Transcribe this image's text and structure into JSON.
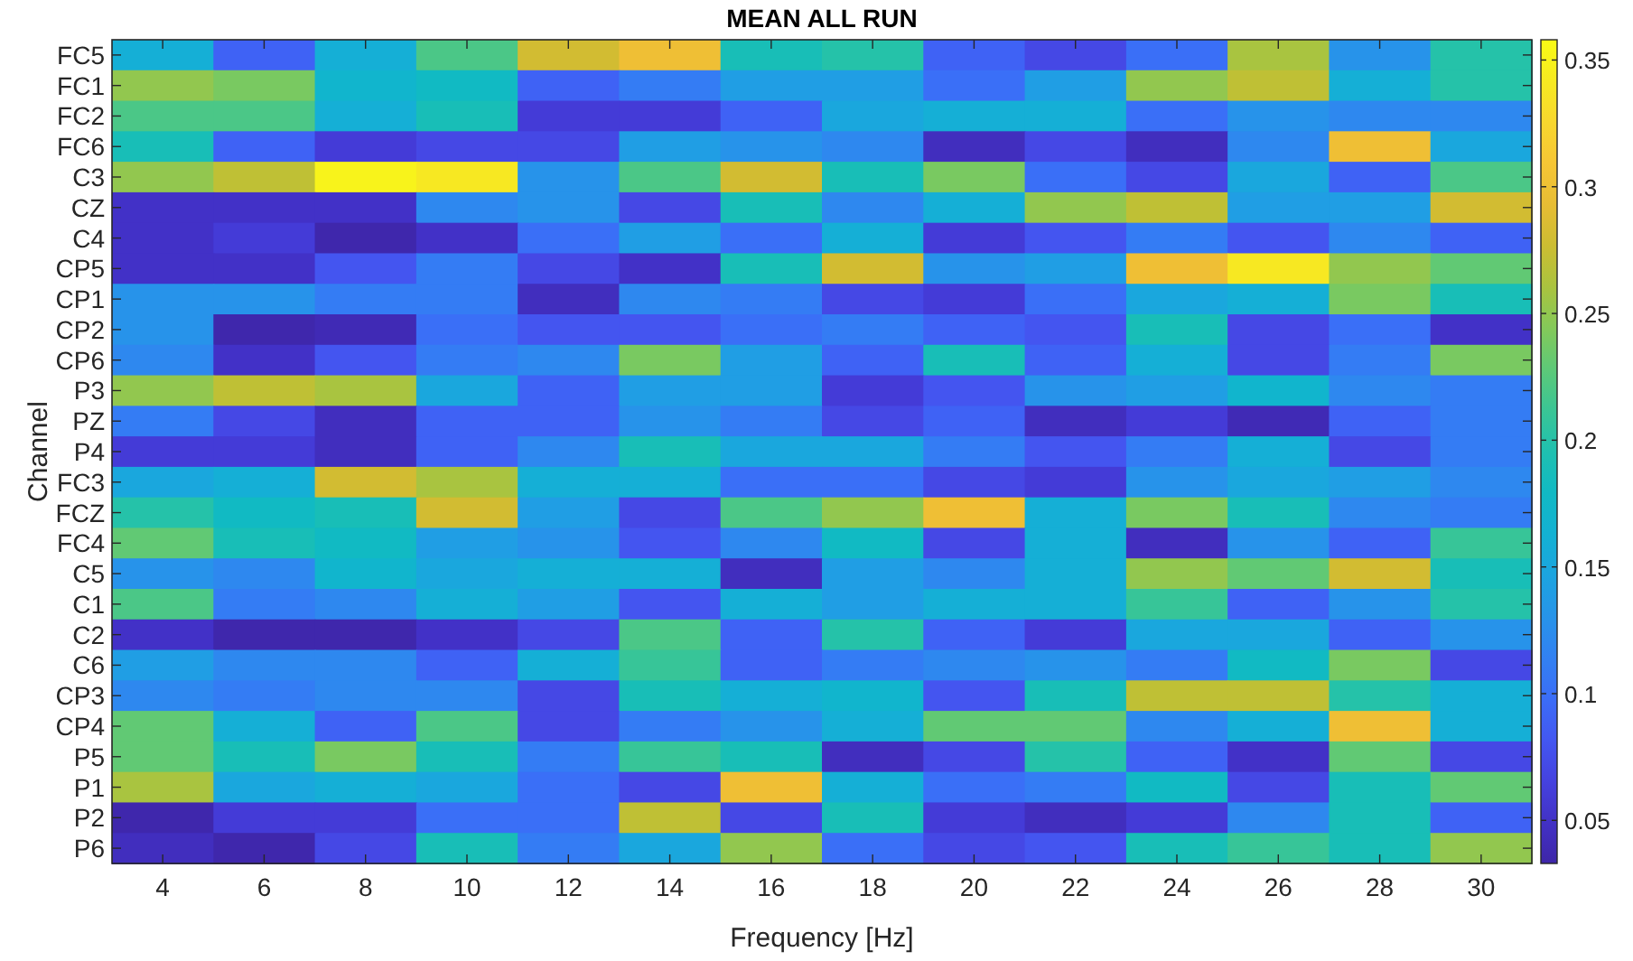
{
  "chart_data": {
    "type": "heatmap",
    "title": "MEAN ALL RUN",
    "xlabel": "Frequency [Hz]",
    "ylabel": "Channel",
    "categories": [
      "4",
      "6",
      "8",
      "10",
      "12",
      "14",
      "16",
      "18",
      "20",
      "22",
      "24",
      "26",
      "28",
      "30"
    ],
    "y_categories": [
      "FC5",
      "FC1",
      "FC2",
      "FC6",
      "C3",
      "CZ",
      "C4",
      "CP5",
      "CP1",
      "CP2",
      "CP6",
      "P3",
      "PZ",
      "P4",
      "FC3",
      "FCZ",
      "FC4",
      "C5",
      "C1",
      "C2",
      "C6",
      "CP3",
      "CP4",
      "P5",
      "P1",
      "P2",
      "P6"
    ],
    "cells": [
      [
        0.16,
        0.09,
        0.16,
        0.22,
        0.28,
        0.3,
        0.19,
        0.2,
        0.09,
        0.07,
        0.1,
        0.26,
        0.13,
        0.2
      ],
      [
        0.25,
        0.24,
        0.17,
        0.18,
        0.09,
        0.11,
        0.14,
        0.14,
        0.1,
        0.14,
        0.25,
        0.27,
        0.16,
        0.2
      ],
      [
        0.22,
        0.22,
        0.16,
        0.19,
        0.06,
        0.06,
        0.09,
        0.15,
        0.16,
        0.16,
        0.1,
        0.13,
        0.12,
        0.12
      ],
      [
        0.19,
        0.09,
        0.06,
        0.07,
        0.07,
        0.14,
        0.13,
        0.12,
        0.045,
        0.07,
        0.045,
        0.12,
        0.3,
        0.15
      ],
      [
        0.25,
        0.27,
        0.35,
        0.34,
        0.13,
        0.22,
        0.28,
        0.19,
        0.24,
        0.1,
        0.07,
        0.15,
        0.09,
        0.22
      ],
      [
        0.05,
        0.05,
        0.05,
        0.12,
        0.13,
        0.07,
        0.19,
        0.12,
        0.16,
        0.25,
        0.27,
        0.14,
        0.14,
        0.28
      ],
      [
        0.05,
        0.06,
        0.035,
        0.05,
        0.1,
        0.14,
        0.1,
        0.16,
        0.06,
        0.08,
        0.11,
        0.08,
        0.12,
        0.09
      ],
      [
        0.05,
        0.05,
        0.08,
        0.11,
        0.07,
        0.05,
        0.19,
        0.28,
        0.13,
        0.14,
        0.3,
        0.34,
        0.25,
        0.23
      ],
      [
        0.13,
        0.13,
        0.11,
        0.11,
        0.045,
        0.12,
        0.11,
        0.07,
        0.06,
        0.1,
        0.15,
        0.16,
        0.24,
        0.19
      ],
      [
        0.13,
        0.035,
        0.04,
        0.1,
        0.08,
        0.08,
        0.1,
        0.11,
        0.09,
        0.08,
        0.19,
        0.07,
        0.1,
        0.05
      ],
      [
        0.12,
        0.05,
        0.08,
        0.11,
        0.12,
        0.24,
        0.14,
        0.09,
        0.19,
        0.09,
        0.16,
        0.07,
        0.11,
        0.24
      ],
      [
        0.25,
        0.27,
        0.26,
        0.15,
        0.09,
        0.14,
        0.14,
        0.06,
        0.08,
        0.13,
        0.14,
        0.17,
        0.12,
        0.11
      ],
      [
        0.11,
        0.07,
        0.045,
        0.09,
        0.09,
        0.13,
        0.11,
        0.07,
        0.09,
        0.045,
        0.06,
        0.04,
        0.09,
        0.11
      ],
      [
        0.06,
        0.06,
        0.045,
        0.09,
        0.12,
        0.19,
        0.15,
        0.15,
        0.11,
        0.08,
        0.11,
        0.16,
        0.07,
        0.11
      ],
      [
        0.15,
        0.16,
        0.28,
        0.26,
        0.16,
        0.16,
        0.1,
        0.1,
        0.07,
        0.06,
        0.13,
        0.15,
        0.14,
        0.12
      ],
      [
        0.2,
        0.18,
        0.19,
        0.28,
        0.14,
        0.07,
        0.22,
        0.25,
        0.3,
        0.16,
        0.24,
        0.19,
        0.12,
        0.11
      ],
      [
        0.23,
        0.19,
        0.18,
        0.14,
        0.13,
        0.08,
        0.12,
        0.18,
        0.07,
        0.16,
        0.045,
        0.13,
        0.09,
        0.21
      ],
      [
        0.13,
        0.12,
        0.17,
        0.15,
        0.16,
        0.16,
        0.045,
        0.14,
        0.12,
        0.16,
        0.25,
        0.23,
        0.28,
        0.19
      ],
      [
        0.22,
        0.11,
        0.12,
        0.16,
        0.14,
        0.08,
        0.16,
        0.14,
        0.16,
        0.16,
        0.21,
        0.09,
        0.13,
        0.2
      ],
      [
        0.05,
        0.035,
        0.035,
        0.05,
        0.07,
        0.22,
        0.09,
        0.2,
        0.09,
        0.06,
        0.15,
        0.15,
        0.09,
        0.13
      ],
      [
        0.14,
        0.12,
        0.12,
        0.09,
        0.16,
        0.21,
        0.09,
        0.11,
        0.12,
        0.13,
        0.11,
        0.18,
        0.24,
        0.07
      ],
      [
        0.12,
        0.11,
        0.12,
        0.12,
        0.07,
        0.19,
        0.16,
        0.17,
        0.08,
        0.19,
        0.27,
        0.27,
        0.2,
        0.16
      ],
      [
        0.23,
        0.16,
        0.09,
        0.22,
        0.07,
        0.11,
        0.13,
        0.16,
        0.23,
        0.23,
        0.12,
        0.16,
        0.3,
        0.16
      ],
      [
        0.23,
        0.19,
        0.24,
        0.19,
        0.11,
        0.21,
        0.19,
        0.045,
        0.07,
        0.2,
        0.09,
        0.05,
        0.23,
        0.07
      ],
      [
        0.26,
        0.15,
        0.16,
        0.15,
        0.1,
        0.07,
        0.3,
        0.16,
        0.1,
        0.11,
        0.18,
        0.07,
        0.19,
        0.23
      ],
      [
        0.035,
        0.06,
        0.06,
        0.1,
        0.1,
        0.27,
        0.07,
        0.19,
        0.06,
        0.045,
        0.06,
        0.12,
        0.19,
        0.09
      ],
      [
        0.045,
        0.035,
        0.07,
        0.19,
        0.11,
        0.15,
        0.25,
        0.1,
        0.07,
        0.08,
        0.19,
        0.21,
        0.19,
        0.25
      ]
    ],
    "clim": [
      0.033,
      0.358
    ],
    "cticks": [
      0.05,
      0.1,
      0.15,
      0.2,
      0.25,
      0.3,
      0.35
    ]
  }
}
